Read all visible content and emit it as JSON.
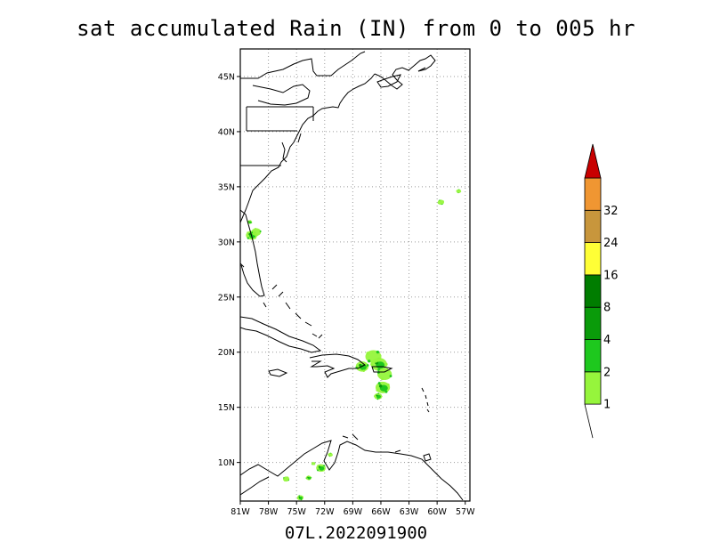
{
  "title": "sat accumulated Rain (IN) from 0 to 005 hr",
  "footer": "07L.2022091900",
  "map": {
    "lon_range": [
      -81,
      -56.5
    ],
    "lat_range": [
      6.5,
      47.5
    ],
    "lon_ticks": [
      {
        "value": -81,
        "label": "81W"
      },
      {
        "value": -78,
        "label": "78W"
      },
      {
        "value": -75,
        "label": "75W"
      },
      {
        "value": -72,
        "label": "72W"
      },
      {
        "value": -69,
        "label": "69W"
      },
      {
        "value": -66,
        "label": "66W"
      },
      {
        "value": -63,
        "label": "63W"
      },
      {
        "value": -60,
        "label": "60W"
      },
      {
        "value": -57,
        "label": "57W"
      }
    ],
    "lat_ticks": [
      {
        "value": 10,
        "label": "10N"
      },
      {
        "value": 15,
        "label": "15N"
      },
      {
        "value": 20,
        "label": "20N"
      },
      {
        "value": 25,
        "label": "25N"
      },
      {
        "value": 30,
        "label": "30N"
      },
      {
        "value": 35,
        "label": "35N"
      },
      {
        "value": 40,
        "label": "40N"
      },
      {
        "value": 45,
        "label": "45N"
      }
    ],
    "grid": true
  },
  "colorbar": {
    "levels": [
      "1",
      "2",
      "4",
      "8",
      "16",
      "24",
      "32"
    ],
    "colors": [
      "#96f53c",
      "#1ec81e",
      "#0a9b0a",
      "#007d00",
      "#ffff36",
      "#c8963c",
      "#f09632",
      "#c80000"
    ]
  },
  "rain_areas": [
    {
      "lon": -66.2,
      "lat": 18.9,
      "level": 2,
      "size": 1.0
    },
    {
      "lon": -66.8,
      "lat": 19.6,
      "level": 1,
      "size": 1.0
    },
    {
      "lon": -68.0,
      "lat": 18.7,
      "level": 2,
      "size": 0.8
    },
    {
      "lon": -65.6,
      "lat": 18.0,
      "level": 1,
      "size": 0.9
    },
    {
      "lon": -65.8,
      "lat": 16.8,
      "level": 2,
      "size": 0.9
    },
    {
      "lon": -66.3,
      "lat": 16.0,
      "level": 2,
      "size": 0.5
    },
    {
      "lon": -79.8,
      "lat": 30.6,
      "level": 2,
      "size": 0.7
    },
    {
      "lon": -79.3,
      "lat": 30.9,
      "level": 1,
      "size": 0.6
    },
    {
      "lon": -80.0,
      "lat": 31.8,
      "level": 2,
      "size": 0.3
    },
    {
      "lon": -59.6,
      "lat": 33.6,
      "level": 1,
      "size": 0.4
    },
    {
      "lon": -57.7,
      "lat": 34.6,
      "level": 1,
      "size": 0.3
    },
    {
      "lon": -72.4,
      "lat": 9.5,
      "level": 2,
      "size": 0.6
    },
    {
      "lon": -73.7,
      "lat": 8.6,
      "level": 2,
      "size": 0.35
    },
    {
      "lon": -76.1,
      "lat": 8.5,
      "level": 1,
      "size": 0.4
    },
    {
      "lon": -74.6,
      "lat": 6.8,
      "level": 2,
      "size": 0.4
    },
    {
      "lon": -71.4,
      "lat": 10.7,
      "level": 1,
      "size": 0.3
    },
    {
      "lon": -73.2,
      "lat": 9.9,
      "level": 1,
      "size": 0.25
    }
  ]
}
